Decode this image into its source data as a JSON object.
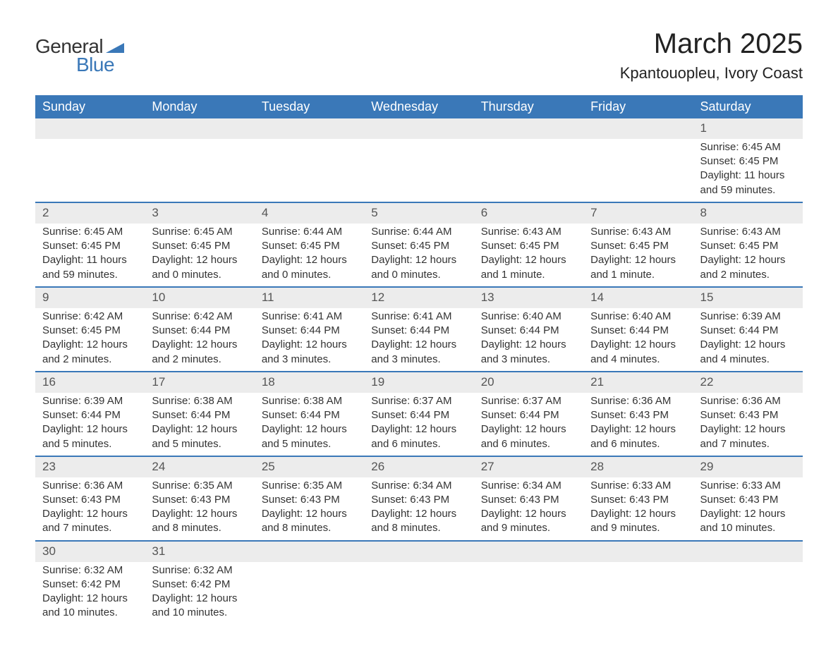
{
  "brand": {
    "word1": "General",
    "word2": "Blue",
    "accent_color": "#3a78b8"
  },
  "title": "March 2025",
  "location": "Kpantouopleu, Ivory Coast",
  "colors": {
    "header_bg": "#3a78b8",
    "header_text": "#ffffff",
    "row_divider": "#3a78b8",
    "daynum_bg": "#ececec",
    "daynum_text": "#555555",
    "body_text": "#333333",
    "page_bg": "#ffffff"
  },
  "typography": {
    "title_fontsize_pt": 30,
    "location_fontsize_pt": 16,
    "header_fontsize_pt": 13,
    "body_fontsize_pt": 11
  },
  "weekday_headers": [
    "Sunday",
    "Monday",
    "Tuesday",
    "Wednesday",
    "Thursday",
    "Friday",
    "Saturday"
  ],
  "weeks": [
    [
      null,
      null,
      null,
      null,
      null,
      null,
      {
        "d": "1",
        "sunrise": "6:45 AM",
        "sunset": "6:45 PM",
        "daylight": "11 hours and 59 minutes."
      }
    ],
    [
      {
        "d": "2",
        "sunrise": "6:45 AM",
        "sunset": "6:45 PM",
        "daylight": "11 hours and 59 minutes."
      },
      {
        "d": "3",
        "sunrise": "6:45 AM",
        "sunset": "6:45 PM",
        "daylight": "12 hours and 0 minutes."
      },
      {
        "d": "4",
        "sunrise": "6:44 AM",
        "sunset": "6:45 PM",
        "daylight": "12 hours and 0 minutes."
      },
      {
        "d": "5",
        "sunrise": "6:44 AM",
        "sunset": "6:45 PM",
        "daylight": "12 hours and 0 minutes."
      },
      {
        "d": "6",
        "sunrise": "6:43 AM",
        "sunset": "6:45 PM",
        "daylight": "12 hours and 1 minute."
      },
      {
        "d": "7",
        "sunrise": "6:43 AM",
        "sunset": "6:45 PM",
        "daylight": "12 hours and 1 minute."
      },
      {
        "d": "8",
        "sunrise": "6:43 AM",
        "sunset": "6:45 PM",
        "daylight": "12 hours and 2 minutes."
      }
    ],
    [
      {
        "d": "9",
        "sunrise": "6:42 AM",
        "sunset": "6:45 PM",
        "daylight": "12 hours and 2 minutes."
      },
      {
        "d": "10",
        "sunrise": "6:42 AM",
        "sunset": "6:44 PM",
        "daylight": "12 hours and 2 minutes."
      },
      {
        "d": "11",
        "sunrise": "6:41 AM",
        "sunset": "6:44 PM",
        "daylight": "12 hours and 3 minutes."
      },
      {
        "d": "12",
        "sunrise": "6:41 AM",
        "sunset": "6:44 PM",
        "daylight": "12 hours and 3 minutes."
      },
      {
        "d": "13",
        "sunrise": "6:40 AM",
        "sunset": "6:44 PM",
        "daylight": "12 hours and 3 minutes."
      },
      {
        "d": "14",
        "sunrise": "6:40 AM",
        "sunset": "6:44 PM",
        "daylight": "12 hours and 4 minutes."
      },
      {
        "d": "15",
        "sunrise": "6:39 AM",
        "sunset": "6:44 PM",
        "daylight": "12 hours and 4 minutes."
      }
    ],
    [
      {
        "d": "16",
        "sunrise": "6:39 AM",
        "sunset": "6:44 PM",
        "daylight": "12 hours and 5 minutes."
      },
      {
        "d": "17",
        "sunrise": "6:38 AM",
        "sunset": "6:44 PM",
        "daylight": "12 hours and 5 minutes."
      },
      {
        "d": "18",
        "sunrise": "6:38 AM",
        "sunset": "6:44 PM",
        "daylight": "12 hours and 5 minutes."
      },
      {
        "d": "19",
        "sunrise": "6:37 AM",
        "sunset": "6:44 PM",
        "daylight": "12 hours and 6 minutes."
      },
      {
        "d": "20",
        "sunrise": "6:37 AM",
        "sunset": "6:44 PM",
        "daylight": "12 hours and 6 minutes."
      },
      {
        "d": "21",
        "sunrise": "6:36 AM",
        "sunset": "6:43 PM",
        "daylight": "12 hours and 6 minutes."
      },
      {
        "d": "22",
        "sunrise": "6:36 AM",
        "sunset": "6:43 PM",
        "daylight": "12 hours and 7 minutes."
      }
    ],
    [
      {
        "d": "23",
        "sunrise": "6:36 AM",
        "sunset": "6:43 PM",
        "daylight": "12 hours and 7 minutes."
      },
      {
        "d": "24",
        "sunrise": "6:35 AM",
        "sunset": "6:43 PM",
        "daylight": "12 hours and 8 minutes."
      },
      {
        "d": "25",
        "sunrise": "6:35 AM",
        "sunset": "6:43 PM",
        "daylight": "12 hours and 8 minutes."
      },
      {
        "d": "26",
        "sunrise": "6:34 AM",
        "sunset": "6:43 PM",
        "daylight": "12 hours and 8 minutes."
      },
      {
        "d": "27",
        "sunrise": "6:34 AM",
        "sunset": "6:43 PM",
        "daylight": "12 hours and 9 minutes."
      },
      {
        "d": "28",
        "sunrise": "6:33 AM",
        "sunset": "6:43 PM",
        "daylight": "12 hours and 9 minutes."
      },
      {
        "d": "29",
        "sunrise": "6:33 AM",
        "sunset": "6:43 PM",
        "daylight": "12 hours and 10 minutes."
      }
    ],
    [
      {
        "d": "30",
        "sunrise": "6:32 AM",
        "sunset": "6:42 PM",
        "daylight": "12 hours and 10 minutes."
      },
      {
        "d": "31",
        "sunrise": "6:32 AM",
        "sunset": "6:42 PM",
        "daylight": "12 hours and 10 minutes."
      },
      null,
      null,
      null,
      null,
      null
    ]
  ],
  "labels": {
    "sunrise_prefix": "Sunrise: ",
    "sunset_prefix": "Sunset: ",
    "daylight_prefix": "Daylight: "
  }
}
